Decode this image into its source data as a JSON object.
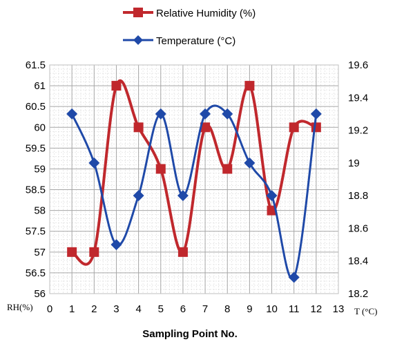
{
  "chart_data": {
    "type": "line",
    "title": "",
    "xlabel": "Sampling Point No.",
    "x_range": [
      0,
      13
    ],
    "x_ticks": [
      "0",
      "1",
      "2",
      "3",
      "4",
      "5",
      "6",
      "7",
      "8",
      "9",
      "10",
      "11",
      "12",
      "13"
    ],
    "left_axis": {
      "unit_label": "RH(%)",
      "range": [
        56,
        61.5
      ],
      "ticks": [
        "56",
        "56.5",
        "57",
        "57.5",
        "58",
        "58.5",
        "59",
        "59.5",
        "60",
        "60.5",
        "61",
        "61.5"
      ]
    },
    "right_axis": {
      "unit_label": "T (°C)",
      "range": [
        18.2,
        19.6
      ],
      "ticks": [
        "18.2",
        "18.4",
        "18.6",
        "18.8",
        "19",
        "19.2",
        "19.4",
        "19.6"
      ]
    },
    "x": [
      1,
      2,
      3,
      4,
      5,
      6,
      7,
      8,
      9,
      10,
      11,
      12
    ],
    "series": [
      {
        "name": "Relative Humidity (%)",
        "axis": "left",
        "marker": "square",
        "color": "#C0282D",
        "values": [
          57,
          57,
          61,
          60,
          59,
          57,
          60,
          59,
          61,
          58,
          60,
          60
        ]
      },
      {
        "name": "Temperature (°C)",
        "axis": "right",
        "marker": "diamond",
        "color": "#1F49A8",
        "values": [
          19.3,
          19.0,
          18.5,
          18.8,
          19.3,
          18.8,
          19.3,
          19.3,
          19.0,
          18.8,
          18.3,
          19.3
        ]
      }
    ],
    "grid": true,
    "minor_grid": true,
    "legend_position": "top-center"
  }
}
